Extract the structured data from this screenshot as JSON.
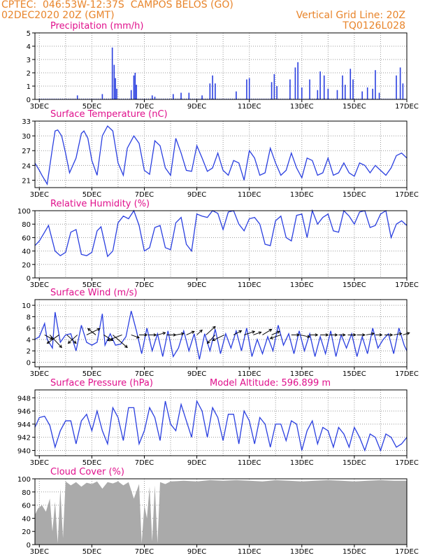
{
  "header": {
    "line1_left": "CPTEC:  046:53W-12:37S  CAMPOS BELOS (GO)",
    "line2_left": "02DEC2020 20Z (GMT)",
    "line2_right": "Vertical Grid Line: 20Z",
    "line3_right": "TQ0126L028"
  },
  "x_axis": {
    "labels": [
      "3DEC",
      "5DEC",
      "7DEC",
      "9DEC",
      "11DEC",
      "13DEC",
      "15DEC",
      "17DEC"
    ],
    "label_days": [
      3,
      5,
      7,
      9,
      11,
      13,
      15,
      17
    ],
    "start_day": 2.833,
    "end_day": 17.0
  },
  "colors": {
    "line": "#2a3fe0",
    "bar": "#2a3fe0",
    "cloud": "#aaaaaa",
    "title": "#e0108c",
    "header": "#e8842a",
    "grid": "#999999"
  },
  "chart_data": [
    {
      "type": "bar",
      "title": "Precipitation (mm/h)",
      "ylim": [
        0,
        5
      ],
      "yticks": [
        0,
        1,
        2,
        3,
        4,
        5
      ],
      "peaks": [
        [
          4.45,
          0.3
        ],
        [
          5.4,
          0.4
        ],
        [
          5.78,
          3.9
        ],
        [
          5.85,
          2.6
        ],
        [
          5.9,
          1.6
        ],
        [
          5.95,
          0.8
        ],
        [
          6.5,
          0.7
        ],
        [
          6.6,
          1.8
        ],
        [
          6.65,
          2.0
        ],
        [
          6.7,
          1.1
        ],
        [
          7.3,
          0.3
        ],
        [
          7.4,
          0.2
        ],
        [
          8.1,
          0.4
        ],
        [
          8.4,
          0.5
        ],
        [
          8.7,
          0.5
        ],
        [
          9.2,
          0.3
        ],
        [
          9.5,
          1.2
        ],
        [
          9.6,
          1.8
        ],
        [
          9.7,
          1.2
        ],
        [
          10.5,
          0.6
        ],
        [
          10.9,
          1.5
        ],
        [
          11.0,
          1.6
        ],
        [
          11.85,
          1.3
        ],
        [
          11.95,
          1.9
        ],
        [
          12.05,
          1.0
        ],
        [
          12.55,
          1.5
        ],
        [
          12.75,
          2.4
        ],
        [
          12.85,
          2.8
        ],
        [
          13.0,
          0.9
        ],
        [
          13.3,
          1.5
        ],
        [
          13.6,
          0.7
        ],
        [
          13.7,
          2.1
        ],
        [
          13.85,
          1.8
        ],
        [
          14.0,
          0.8
        ],
        [
          14.35,
          0.7
        ],
        [
          14.55,
          1.8
        ],
        [
          14.65,
          1.1
        ],
        [
          14.85,
          2.3
        ],
        [
          14.95,
          1.5
        ],
        [
          15.3,
          0.6
        ],
        [
          15.5,
          0.9
        ],
        [
          15.7,
          0.8
        ],
        [
          15.8,
          2.2
        ],
        [
          15.95,
          0.5
        ],
        [
          16.6,
          1.8
        ],
        [
          16.75,
          2.4
        ],
        [
          16.85,
          1.2
        ]
      ]
    },
    {
      "type": "line",
      "title": "Surface Temperature (nC)",
      "ylim": [
        19.5,
        33
      ],
      "yticks": [
        21,
        24,
        27,
        30,
        33
      ],
      "x": [
        2.83,
        3.0,
        3.1,
        3.3,
        3.5,
        3.6,
        3.7,
        3.85,
        4.0,
        4.15,
        4.4,
        4.6,
        4.7,
        4.85,
        5.0,
        5.2,
        5.4,
        5.6,
        5.8,
        6.0,
        6.2,
        6.35,
        6.6,
        6.8,
        7.0,
        7.2,
        7.4,
        7.6,
        7.8,
        8.0,
        8.2,
        8.4,
        8.6,
        8.8,
        9.0,
        9.2,
        9.4,
        9.6,
        9.8,
        10.0,
        10.2,
        10.4,
        10.6,
        10.8,
        11.0,
        11.2,
        11.4,
        11.6,
        11.8,
        12.0,
        12.2,
        12.4,
        12.6,
        12.8,
        13.0,
        13.2,
        13.4,
        13.6,
        13.8,
        14.0,
        14.2,
        14.4,
        14.6,
        14.8,
        15.0,
        15.2,
        15.4,
        15.6,
        15.8,
        16.0,
        16.2,
        16.4,
        16.6,
        16.8,
        17.0
      ],
      "y": [
        24.5,
        23.0,
        22.0,
        20.2,
        27.5,
        31.0,
        31.2,
        30.0,
        26.5,
        22.5,
        25.5,
        30.5,
        31.0,
        29.5,
        25.0,
        22.0,
        30.0,
        32.0,
        31.0,
        24.5,
        22.0,
        27.5,
        30.0,
        28.5,
        23.0,
        22.2,
        29.0,
        28.0,
        23.5,
        22.0,
        29.5,
        26.5,
        23.0,
        22.8,
        28.0,
        25.5,
        22.8,
        23.5,
        26.5,
        23.0,
        22.0,
        25.0,
        24.5,
        21.0,
        27.0,
        25.5,
        22.0,
        22.5,
        27.5,
        24.5,
        22.0,
        23.0,
        26.5,
        23.5,
        21.5,
        25.5,
        25.0,
        22.0,
        22.5,
        25.5,
        22.0,
        22.5,
        24.5,
        22.5,
        21.8,
        24.5,
        24.0,
        22.5,
        24.0,
        23.0,
        22.0,
        23.5,
        26.0,
        26.5,
        25.5
      ]
    },
    {
      "type": "line",
      "title": "Relative Humidity (%)",
      "ylim": [
        0,
        100
      ],
      "yticks": [
        0,
        20,
        40,
        60,
        80,
        100
      ],
      "x": [
        2.83,
        3.0,
        3.2,
        3.35,
        3.6,
        3.8,
        4.0,
        4.2,
        4.4,
        4.6,
        4.8,
        5.0,
        5.2,
        5.35,
        5.6,
        5.8,
        6.0,
        6.2,
        6.4,
        6.6,
        6.8,
        7.0,
        7.2,
        7.4,
        7.6,
        7.8,
        8.0,
        8.2,
        8.4,
        8.6,
        8.8,
        9.0,
        9.2,
        9.4,
        9.6,
        9.8,
        10.0,
        10.2,
        10.4,
        10.6,
        10.8,
        11.0,
        11.2,
        11.4,
        11.6,
        11.8,
        12.0,
        12.2,
        12.4,
        12.6,
        12.8,
        13.0,
        13.2,
        13.4,
        13.6,
        13.8,
        14.0,
        14.2,
        14.4,
        14.6,
        14.8,
        15.0,
        15.2,
        15.4,
        15.6,
        15.8,
        16.0,
        16.2,
        16.4,
        16.6,
        16.8,
        17.0
      ],
      "y": [
        48,
        55,
        68,
        78,
        40,
        33,
        38,
        68,
        72,
        35,
        33,
        38,
        70,
        76,
        32,
        40,
        82,
        92,
        88,
        100,
        78,
        40,
        45,
        75,
        78,
        45,
        42,
        82,
        90,
        50,
        40,
        95,
        92,
        90,
        100,
        96,
        72,
        98,
        100,
        80,
        70,
        88,
        90,
        80,
        50,
        48,
        85,
        92,
        60,
        55,
        93,
        95,
        60,
        100,
        80,
        90,
        95,
        70,
        68,
        100,
        92,
        80,
        98,
        100,
        75,
        78,
        95,
        100,
        60,
        80,
        85,
        78
      ]
    },
    {
      "type": "line",
      "title": "Surface Wind (m/s)",
      "ylim": [
        -0.8,
        11
      ],
      "yticks": [
        0,
        2,
        4,
        6,
        8,
        10
      ],
      "x": [
        2.83,
        3.0,
        3.2,
        3.3,
        3.5,
        3.6,
        3.8,
        4.0,
        4.2,
        4.4,
        4.6,
        4.8,
        5.0,
        5.2,
        5.4,
        5.5,
        5.7,
        5.9,
        6.1,
        6.3,
        6.5,
        6.7,
        6.9,
        7.1,
        7.3,
        7.5,
        7.7,
        7.9,
        8.1,
        8.3,
        8.5,
        8.7,
        8.9,
        9.1,
        9.3,
        9.5,
        9.7,
        9.9,
        10.1,
        10.3,
        10.5,
        10.7,
        10.9,
        11.1,
        11.3,
        11.5,
        11.7,
        11.9,
        12.1,
        12.3,
        12.5,
        12.7,
        12.9,
        13.1,
        13.3,
        13.5,
        13.7,
        13.9,
        14.1,
        14.3,
        14.5,
        14.7,
        14.9,
        15.1,
        15.3,
        15.5,
        15.7,
        15.9,
        16.1,
        16.3,
        16.5,
        16.7,
        16.9,
        17.0
      ],
      "y": [
        4.0,
        4.5,
        6.8,
        4.0,
        2.5,
        8.8,
        3.5,
        4.8,
        5.0,
        2.0,
        6.5,
        3.5,
        3.0,
        3.5,
        8.5,
        3.0,
        5.0,
        3.0,
        3.2,
        4.5,
        9.0,
        5.5,
        1.5,
        6.0,
        2.0,
        5.0,
        1.0,
        5.5,
        1.0,
        2.5,
        5.5,
        2.0,
        5.0,
        0.5,
        5.0,
        2.0,
        5.8,
        1.5,
        5.0,
        2.5,
        5.5,
        2.0,
        6.0,
        1.0,
        4.0,
        1.5,
        4.5,
        2.0,
        6.5,
        3.0,
        5.0,
        1.5,
        5.5,
        2.0,
        5.0,
        1.0,
        4.5,
        1.5,
        5.5,
        1.0,
        4.8,
        2.5,
        5.0,
        1.0,
        4.5,
        1.5,
        6.0,
        2.5,
        4.0,
        5.0,
        1.5,
        6.0,
        3.0,
        2.0
      ],
      "arrows": {
        "x": [
          3.2,
          3.4,
          3.75,
          4.05,
          4.45,
          4.8,
          5.15,
          5.45,
          5.8,
          6.15,
          6.5,
          6.8,
          7.15,
          7.5,
          7.85,
          8.2,
          8.6,
          9.0,
          9.35,
          9.7,
          10.05,
          10.4,
          10.8,
          11.15,
          11.5,
          11.85,
          12.2,
          12.6,
          12.95,
          13.3,
          13.7,
          14.05,
          14.4,
          14.75,
          15.1,
          15.45,
          15.8,
          16.15,
          16.5,
          16.85
        ],
        "dx": [
          0.3,
          0.45,
          -0.45,
          0.35,
          -0.35,
          0.5,
          -0.3,
          0.35,
          0.55,
          -0.55,
          0.3,
          0.3,
          0.3,
          0.3,
          0.35,
          0.3,
          0.3,
          0.2,
          0.35,
          -0.3,
          -0.45,
          0.3,
          0.4,
          0.3,
          0.35,
          0.3,
          -0.4,
          0.3,
          0.35,
          0.3,
          0.3,
          0.3,
          0.25,
          0.3,
          0.3,
          0.3,
          0.25,
          0.3,
          0.3,
          0.25
        ],
        "dy": [
          -0.6,
          -1.8,
          -1.2,
          -1.2,
          -1.2,
          0.9,
          0.9,
          -0.8,
          -1.8,
          -0.8,
          -0.4,
          0,
          0,
          0.3,
          0,
          0.2,
          0.5,
          0.7,
          1.2,
          -1.2,
          -0.8,
          0.6,
          0.5,
          0.4,
          0.8,
          0.5,
          -0.5,
          0,
          -0.3,
          0,
          0,
          0,
          0,
          0,
          0,
          0.2,
          0,
          0,
          0.2,
          0.3
        ]
      }
    },
    {
      "type": "line",
      "title": "Surface Pressure (hPa)",
      "annotation": "Model Altitude: 596.899  m",
      "ylim": [
        939.2,
        949.2
      ],
      "yticks": [
        940,
        942,
        944,
        946,
        948
      ],
      "x": [
        2.83,
        3.0,
        3.2,
        3.4,
        3.6,
        3.8,
        4.0,
        4.2,
        4.4,
        4.6,
        4.8,
        5.0,
        5.2,
        5.4,
        5.6,
        5.8,
        6.0,
        6.2,
        6.4,
        6.6,
        6.8,
        7.0,
        7.2,
        7.4,
        7.6,
        7.8,
        8.0,
        8.2,
        8.4,
        8.6,
        8.8,
        9.0,
        9.2,
        9.4,
        9.6,
        9.8,
        10.0,
        10.2,
        10.4,
        10.6,
        10.8,
        11.0,
        11.2,
        11.4,
        11.6,
        11.8,
        12.0,
        12.2,
        12.4,
        12.6,
        12.8,
        13.0,
        13.2,
        13.4,
        13.6,
        13.8,
        14.0,
        14.2,
        14.4,
        14.6,
        14.8,
        15.0,
        15.2,
        15.4,
        15.6,
        15.8,
        16.0,
        16.2,
        16.4,
        16.6,
        16.8,
        17.0
      ],
      "y": [
        943.5,
        945.0,
        945.2,
        943.8,
        940.5,
        943.0,
        944.5,
        944.5,
        941.0,
        944.5,
        945.5,
        943.0,
        946.0,
        943.0,
        941.0,
        946.5,
        945.0,
        941.5,
        946.5,
        946.5,
        941.0,
        943.0,
        946.5,
        945.0,
        941.5,
        947.5,
        944.0,
        943.0,
        947.0,
        944.5,
        942.0,
        947.5,
        946.0,
        942.0,
        946.5,
        945.0,
        941.5,
        945.5,
        945.5,
        941.0,
        946.0,
        944.5,
        941.0,
        945.0,
        944.0,
        940.5,
        944.0,
        944.0,
        941.5,
        944.5,
        944.0,
        940.0,
        943.0,
        944.5,
        941.0,
        943.5,
        943.0,
        940.5,
        943.5,
        942.5,
        940.5,
        943.5,
        942.0,
        940.0,
        942.5,
        942.0,
        940.0,
        942.5,
        942.0,
        940.5,
        941.0,
        942.0
      ]
    },
    {
      "type": "area",
      "title": "Cloud Cover (%)",
      "ylim": [
        0,
        100
      ],
      "yticks": [
        0,
        20,
        40,
        60,
        80,
        100
      ],
      "x": [
        2.83,
        2.95,
        3.1,
        3.25,
        3.4,
        3.5,
        3.6,
        3.7,
        3.8,
        3.9,
        4.0,
        4.2,
        4.4,
        4.6,
        4.8,
        5.0,
        5.2,
        5.4,
        5.6,
        5.8,
        6.0,
        6.2,
        6.4,
        6.6,
        6.8,
        6.9,
        7.0,
        7.1,
        7.2,
        7.3,
        7.4,
        7.5,
        7.6,
        7.8,
        8.0,
        8.5,
        9.0,
        9.5,
        10.0,
        10.5,
        11.0,
        11.5,
        12.0,
        12.5,
        13.0,
        13.5,
        14.0,
        14.5,
        15.0,
        15.5,
        16.0,
        16.5,
        17.0
      ],
      "y": [
        45,
        55,
        60,
        50,
        70,
        20,
        65,
        2,
        85,
        10,
        96,
        90,
        95,
        88,
        94,
        92,
        96,
        85,
        95,
        93,
        96,
        90,
        95,
        70,
        92,
        2,
        60,
        40,
        88,
        5,
        90,
        2,
        95,
        92,
        96,
        97,
        96,
        98,
        97,
        98,
        97,
        96,
        98,
        97,
        96,
        97,
        98,
        97,
        96,
        97,
        98,
        97,
        97
      ]
    }
  ]
}
